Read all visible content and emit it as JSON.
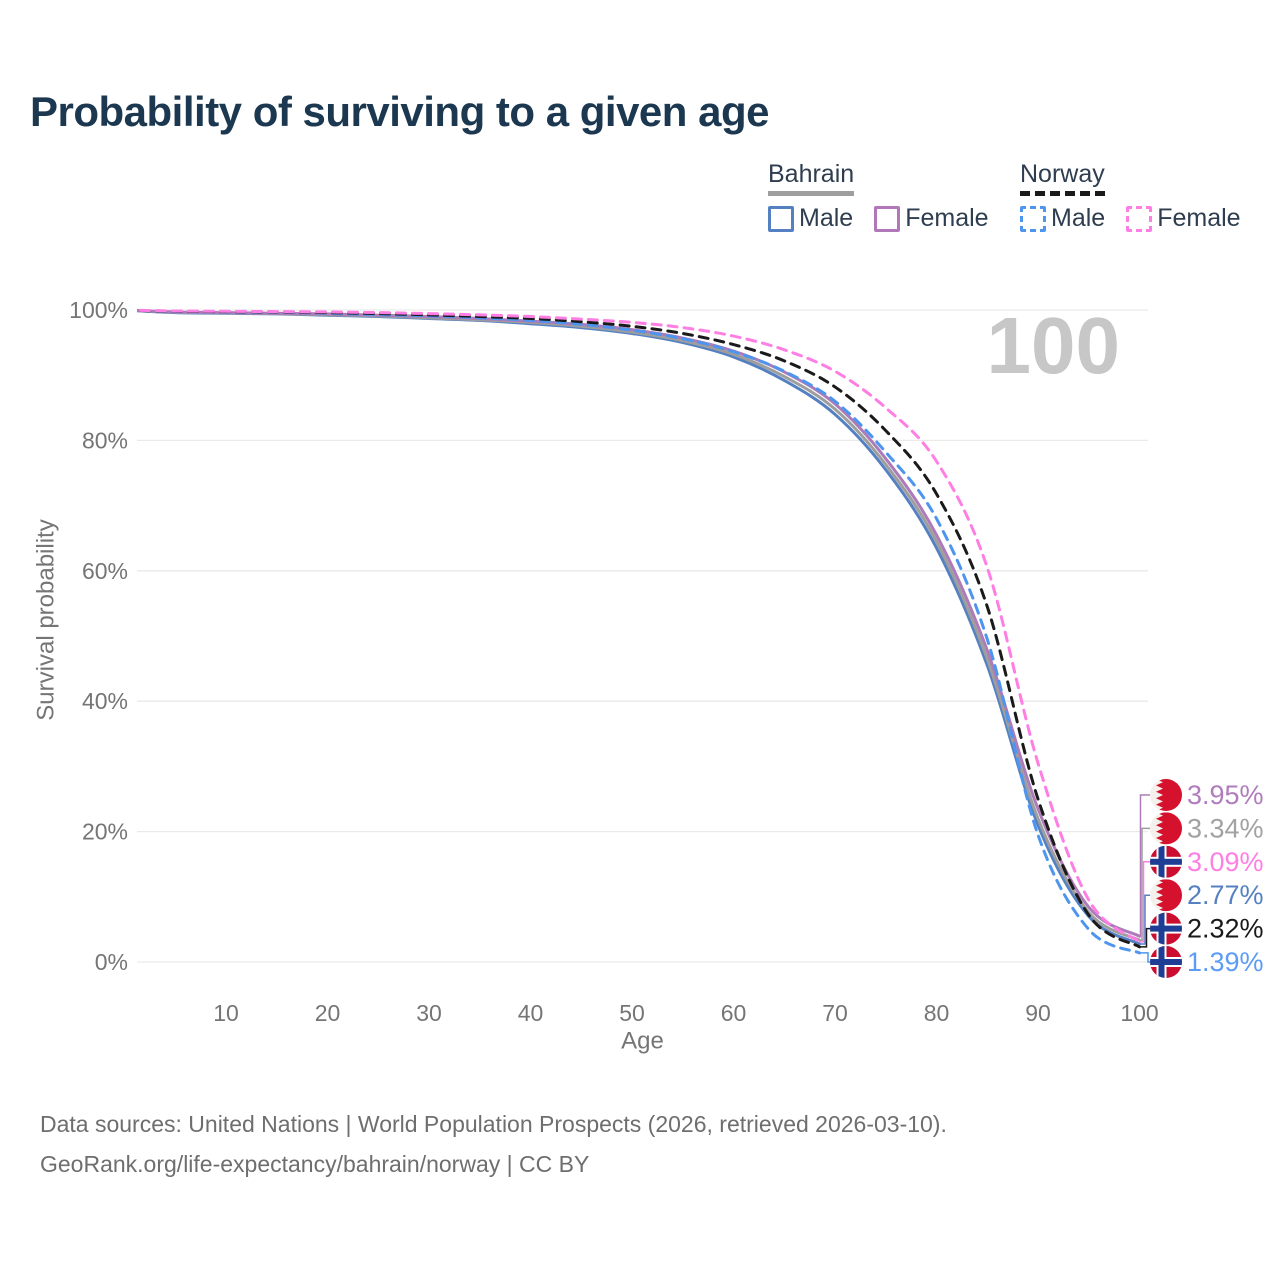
{
  "title": "Probability of surviving to a given age",
  "legend": {
    "groups": [
      {
        "name": "Bahrain",
        "underline_style": "solid",
        "underline_color": "#9E9E9E",
        "items": [
          {
            "label": "Male",
            "color": "#5581C2",
            "style": "solid"
          },
          {
            "label": "Female",
            "color": "#B277B8",
            "style": "solid"
          }
        ]
      },
      {
        "name": "Norway",
        "underline_style": "dashed",
        "underline_color": "#1A1A1A",
        "items": [
          {
            "label": "Male",
            "color": "#4E95F0",
            "style": "dashed"
          },
          {
            "label": "Female",
            "color": "#FF7EE4",
            "style": "dashed"
          }
        ]
      }
    ]
  },
  "chart_data": {
    "type": "line",
    "title": "Probability of surviving to a given age",
    "xlabel": "Age",
    "ylabel": "Survival probability",
    "watermark": "100",
    "x_ticks": [
      10,
      20,
      30,
      40,
      50,
      60,
      70,
      80,
      90,
      100
    ],
    "y_ticks": [
      0,
      20,
      40,
      60,
      80,
      100
    ],
    "y_tick_labels": [
      "0%",
      "20%",
      "40%",
      "60%",
      "80%",
      "100%"
    ],
    "xlim": [
      1,
      100
    ],
    "ylim": [
      0,
      100
    ],
    "grid": "horizontal",
    "legend_position": "top-right",
    "ages": [
      0,
      5,
      10,
      15,
      20,
      25,
      30,
      35,
      40,
      45,
      50,
      55,
      60,
      65,
      70,
      75,
      80,
      85,
      90,
      95,
      100
    ],
    "series": [
      {
        "name": "Bahrain Male",
        "country": "Bahrain",
        "sex": "Male",
        "color": "#5581C2",
        "style": "solid",
        "values": [
          100,
          99.6,
          99.5,
          99.4,
          99.2,
          99.0,
          98.7,
          98.4,
          97.9,
          97.3,
          96.4,
          95.0,
          92.8,
          89.2,
          84.0,
          75.5,
          63.5,
          45.5,
          21.0,
          7.0,
          2.77
        ]
      },
      {
        "name": "Bahrain Both sexes",
        "country": "Bahrain",
        "sex": "Both",
        "color": "#9E9E9E",
        "style": "solid",
        "values": [
          100,
          99.65,
          99.55,
          99.45,
          99.3,
          99.1,
          98.8,
          98.5,
          98.1,
          97.5,
          96.6,
          95.3,
          93.2,
          89.8,
          84.8,
          76.3,
          64.5,
          46.5,
          22.0,
          7.6,
          3.34
        ]
      },
      {
        "name": "Bahrain Female",
        "country": "Bahrain",
        "sex": "Female",
        "color": "#AC7BB8",
        "style": "solid",
        "values": [
          100,
          99.7,
          99.6,
          99.5,
          99.4,
          99.2,
          99.0,
          98.7,
          98.3,
          97.8,
          97.0,
          95.7,
          93.7,
          90.5,
          85.6,
          77.2,
          65.5,
          47.8,
          23.5,
          8.4,
          3.95
        ]
      },
      {
        "name": "Norway Male",
        "country": "Norway",
        "sex": "Male",
        "color": "#4E95F0",
        "style": "dashed",
        "values": [
          100,
          99.75,
          99.7,
          99.65,
          99.5,
          99.3,
          99.1,
          98.8,
          98.4,
          97.8,
          96.9,
          95.6,
          93.6,
          90.6,
          86.0,
          78.2,
          68.0,
          49.5,
          19.5,
          5.0,
          1.39
        ]
      },
      {
        "name": "Norway Both sexes",
        "country": "Norway",
        "sex": "Both",
        "color": "#1A1A1A",
        "style": "dashed",
        "values": [
          100,
          99.8,
          99.75,
          99.7,
          99.6,
          99.45,
          99.25,
          99.0,
          98.7,
          98.2,
          97.5,
          96.4,
          94.7,
          92.2,
          88.2,
          81.5,
          71.8,
          54.5,
          25.0,
          7.2,
          2.32
        ]
      },
      {
        "name": "Norway Female",
        "country": "Norway",
        "sex": "Female",
        "color": "#FF7EE4",
        "style": "dashed",
        "values": [
          100,
          99.85,
          99.8,
          99.75,
          99.7,
          99.6,
          99.45,
          99.25,
          99.0,
          98.6,
          98.1,
          97.3,
          96.0,
          93.9,
          90.6,
          85.0,
          76.8,
          60.5,
          30.5,
          9.5,
          3.09
        ]
      }
    ],
    "end_labels": [
      {
        "text": "3.95%",
        "color": "#B07CBC",
        "flag": "bahrain",
        "series": "Bahrain Female"
      },
      {
        "text": "3.34%",
        "color": "#A2A2A2",
        "flag": "bahrain",
        "series": "Bahrain Both sexes"
      },
      {
        "text": "3.09%",
        "color": "#FF7EE4",
        "flag": "norway",
        "series": "Norway Female"
      },
      {
        "text": "2.77%",
        "color": "#5581C2",
        "flag": "bahrain",
        "series": "Bahrain Male"
      },
      {
        "text": "2.32%",
        "color": "#1A1A1A",
        "flag": "norway",
        "series": "Norway Both sexes"
      },
      {
        "text": "1.39%",
        "color": "#5D9CF5",
        "flag": "norway",
        "series": "Norway Male"
      }
    ]
  },
  "footer": {
    "line1": "Data sources: United Nations | World Population Prospects (2026, retrieved 2026-03-10).",
    "line2": "GeoRank.org/life-expectancy/bahrain/norway | CC BY"
  }
}
